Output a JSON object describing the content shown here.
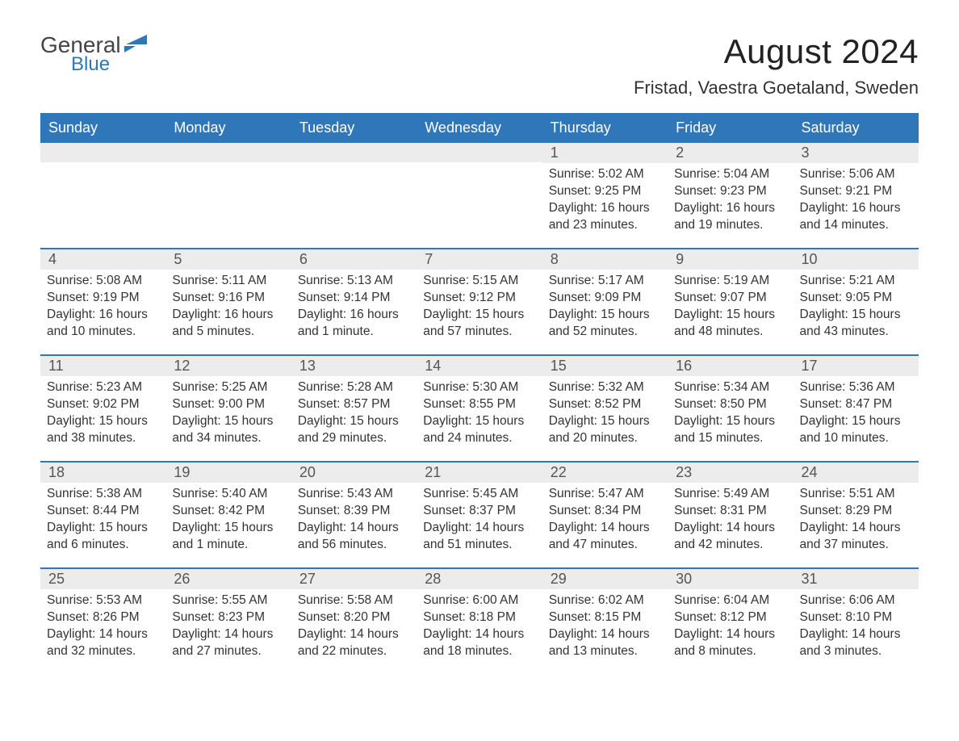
{
  "brand": {
    "word1": "General",
    "word2": "Blue"
  },
  "title": "August 2024",
  "location": "Fristad, Vaestra Goetaland, Sweden",
  "colors": {
    "header_bg": "#2f77b8",
    "header_text": "#ffffff",
    "daynum_bg": "#ececec",
    "body_text": "#333333",
    "page_bg": "#ffffff",
    "brand_accent": "#2f77b8"
  },
  "typography": {
    "title_fontsize": 42,
    "location_fontsize": 22,
    "dow_fontsize": 18,
    "daynum_fontsize": 18,
    "body_fontsize": 15.5
  },
  "days_of_week": [
    "Sunday",
    "Monday",
    "Tuesday",
    "Wednesday",
    "Thursday",
    "Friday",
    "Saturday"
  ],
  "labels": {
    "sunrise": "Sunrise:",
    "sunset": "Sunset:",
    "daylight": "Daylight:"
  },
  "weeks": [
    [
      null,
      null,
      null,
      null,
      {
        "n": "1",
        "sunrise": "5:02 AM",
        "sunset": "9:25 PM",
        "daylight": "16 hours and 23 minutes."
      },
      {
        "n": "2",
        "sunrise": "5:04 AM",
        "sunset": "9:23 PM",
        "daylight": "16 hours and 19 minutes."
      },
      {
        "n": "3",
        "sunrise": "5:06 AM",
        "sunset": "9:21 PM",
        "daylight": "16 hours and 14 minutes."
      }
    ],
    [
      {
        "n": "4",
        "sunrise": "5:08 AM",
        "sunset": "9:19 PM",
        "daylight": "16 hours and 10 minutes."
      },
      {
        "n": "5",
        "sunrise": "5:11 AM",
        "sunset": "9:16 PM",
        "daylight": "16 hours and 5 minutes."
      },
      {
        "n": "6",
        "sunrise": "5:13 AM",
        "sunset": "9:14 PM",
        "daylight": "16 hours and 1 minute."
      },
      {
        "n": "7",
        "sunrise": "5:15 AM",
        "sunset": "9:12 PM",
        "daylight": "15 hours and 57 minutes."
      },
      {
        "n": "8",
        "sunrise": "5:17 AM",
        "sunset": "9:09 PM",
        "daylight": "15 hours and 52 minutes."
      },
      {
        "n": "9",
        "sunrise": "5:19 AM",
        "sunset": "9:07 PM",
        "daylight": "15 hours and 48 minutes."
      },
      {
        "n": "10",
        "sunrise": "5:21 AM",
        "sunset": "9:05 PM",
        "daylight": "15 hours and 43 minutes."
      }
    ],
    [
      {
        "n": "11",
        "sunrise": "5:23 AM",
        "sunset": "9:02 PM",
        "daylight": "15 hours and 38 minutes."
      },
      {
        "n": "12",
        "sunrise": "5:25 AM",
        "sunset": "9:00 PM",
        "daylight": "15 hours and 34 minutes."
      },
      {
        "n": "13",
        "sunrise": "5:28 AM",
        "sunset": "8:57 PM",
        "daylight": "15 hours and 29 minutes."
      },
      {
        "n": "14",
        "sunrise": "5:30 AM",
        "sunset": "8:55 PM",
        "daylight": "15 hours and 24 minutes."
      },
      {
        "n": "15",
        "sunrise": "5:32 AM",
        "sunset": "8:52 PM",
        "daylight": "15 hours and 20 minutes."
      },
      {
        "n": "16",
        "sunrise": "5:34 AM",
        "sunset": "8:50 PM",
        "daylight": "15 hours and 15 minutes."
      },
      {
        "n": "17",
        "sunrise": "5:36 AM",
        "sunset": "8:47 PM",
        "daylight": "15 hours and 10 minutes."
      }
    ],
    [
      {
        "n": "18",
        "sunrise": "5:38 AM",
        "sunset": "8:44 PM",
        "daylight": "15 hours and 6 minutes."
      },
      {
        "n": "19",
        "sunrise": "5:40 AM",
        "sunset": "8:42 PM",
        "daylight": "15 hours and 1 minute."
      },
      {
        "n": "20",
        "sunrise": "5:43 AM",
        "sunset": "8:39 PM",
        "daylight": "14 hours and 56 minutes."
      },
      {
        "n": "21",
        "sunrise": "5:45 AM",
        "sunset": "8:37 PM",
        "daylight": "14 hours and 51 minutes."
      },
      {
        "n": "22",
        "sunrise": "5:47 AM",
        "sunset": "8:34 PM",
        "daylight": "14 hours and 47 minutes."
      },
      {
        "n": "23",
        "sunrise": "5:49 AM",
        "sunset": "8:31 PM",
        "daylight": "14 hours and 42 minutes."
      },
      {
        "n": "24",
        "sunrise": "5:51 AM",
        "sunset": "8:29 PM",
        "daylight": "14 hours and 37 minutes."
      }
    ],
    [
      {
        "n": "25",
        "sunrise": "5:53 AM",
        "sunset": "8:26 PM",
        "daylight": "14 hours and 32 minutes."
      },
      {
        "n": "26",
        "sunrise": "5:55 AM",
        "sunset": "8:23 PM",
        "daylight": "14 hours and 27 minutes."
      },
      {
        "n": "27",
        "sunrise": "5:58 AM",
        "sunset": "8:20 PM",
        "daylight": "14 hours and 22 minutes."
      },
      {
        "n": "28",
        "sunrise": "6:00 AM",
        "sunset": "8:18 PM",
        "daylight": "14 hours and 18 minutes."
      },
      {
        "n": "29",
        "sunrise": "6:02 AM",
        "sunset": "8:15 PM",
        "daylight": "14 hours and 13 minutes."
      },
      {
        "n": "30",
        "sunrise": "6:04 AM",
        "sunset": "8:12 PM",
        "daylight": "14 hours and 8 minutes."
      },
      {
        "n": "31",
        "sunrise": "6:06 AM",
        "sunset": "8:10 PM",
        "daylight": "14 hours and 3 minutes."
      }
    ]
  ]
}
